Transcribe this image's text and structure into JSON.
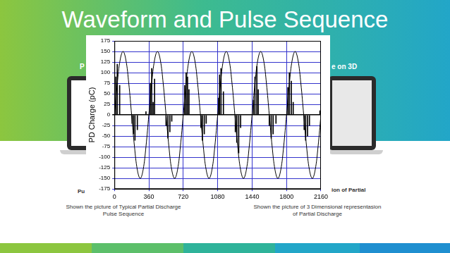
{
  "slide": {
    "title": "Waveform and Pulse Sequence",
    "fragments": {
      "top_left": "P",
      "top_right": "e on 3D",
      "bottom_left": "Pu",
      "bottom_right": "ion of Partial"
    },
    "captions": {
      "left": [
        "Shown the picture of Typical Partial Discharge",
        "Pulse Sequence"
      ],
      "right": [
        "Shown the picture of 3 Dimensional representasion",
        "of Partial Discharge"
      ]
    }
  },
  "chart_data": {
    "type": "line",
    "y_label": "PD Charge (pC)",
    "xlim": [
      0,
      2160
    ],
    "xticks": [
      0,
      360,
      720,
      1080,
      1440,
      1800,
      2160
    ],
    "ylim": [
      -175,
      175
    ],
    "yticks": [
      -175,
      -150,
      -125,
      -100,
      -75,
      -50,
      -25,
      0,
      25,
      50,
      75,
      100,
      125,
      150,
      175
    ],
    "grid": true,
    "series": [
      {
        "type": "line",
        "color": "#000000",
        "x": [
          0,
          30,
          60,
          90,
          120,
          150,
          180,
          210,
          240,
          270,
          300,
          330,
          360,
          390,
          420,
          450,
          480,
          510,
          540,
          570,
          600,
          630,
          660,
          690,
          720,
          750,
          780,
          810,
          840,
          870,
          900,
          930,
          960,
          990,
          1020,
          1050,
          1080,
          1110,
          1140,
          1170,
          1200,
          1230,
          1260,
          1290,
          1320,
          1350,
          1380,
          1410,
          1440,
          1470,
          1500,
          1530,
          1560,
          1590,
          1620,
          1650,
          1680,
          1710,
          1740,
          1770,
          1800,
          1830,
          1860,
          1890,
          1920,
          1950,
          1980,
          2010,
          2040,
          2070,
          2100,
          2130,
          2160
        ],
        "values": [
          0,
          75,
          130,
          150,
          130,
          75,
          0,
          -75,
          -130,
          -150,
          -130,
          -75,
          0,
          75,
          130,
          150,
          130,
          75,
          0,
          -75,
          -130,
          -150,
          -130,
          -75,
          0,
          75,
          130,
          150,
          130,
          75,
          0,
          -75,
          -130,
          -150,
          -130,
          -75,
          0,
          75,
          130,
          150,
          130,
          75,
          0,
          -75,
          -130,
          -150,
          -130,
          -75,
          0,
          75,
          130,
          150,
          130,
          75,
          0,
          -75,
          -130,
          -150,
          -130,
          -75,
          0,
          75,
          130,
          150,
          130,
          75,
          0,
          -75,
          -130,
          -150,
          -130,
          -75,
          0
        ]
      },
      {
        "type": "bar",
        "color": "#000000",
        "x": [
          15,
          30,
          55,
          185,
          200,
          215,
          240,
          330,
          375,
          390,
          405,
          420,
          540,
          560,
          580,
          600,
          735,
          750,
          765,
          780,
          905,
          920,
          940,
          960,
          1090,
          1100,
          1115,
          1140,
          1265,
          1280,
          1300,
          1320,
          1455,
          1470,
          1490,
          1505,
          1620,
          1640,
          1660,
          1690,
          1815,
          1830,
          1850,
          1870,
          1985,
          2000,
          2020,
          2040,
          2150
        ],
        "values": [
          90,
          120,
          70,
          -20,
          -45,
          -60,
          -35,
          8,
          75,
          110,
          30,
          85,
          -25,
          -55,
          -40,
          -15,
          70,
          100,
          90,
          60,
          -30,
          -60,
          -45,
          -20,
          40,
          95,
          110,
          55,
          -40,
          -65,
          -90,
          -30,
          35,
          90,
          115,
          60,
          -25,
          -55,
          -45,
          -20,
          65,
          100,
          80,
          30,
          -35,
          -60,
          -50,
          -25,
          10
        ]
      }
    ]
  }
}
